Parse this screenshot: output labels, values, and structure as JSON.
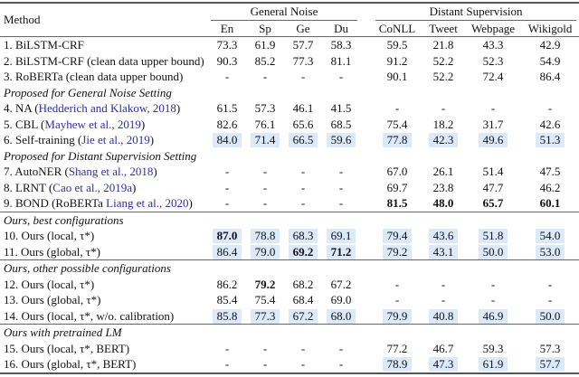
{
  "header": {
    "method": "Method",
    "groups": [
      "General Noise",
      "Distant Supervision"
    ],
    "columns": [
      "En",
      "Sp",
      "Ge",
      "Du",
      "CoNLL",
      "Tweet",
      "Webpage",
      "Wikigold"
    ]
  },
  "highlight_color": "#dce9f9",
  "citation_color": "#2b2fa8",
  "rows": [
    {
      "type": "row",
      "method": "1. BiLSTM-CRF",
      "values": [
        "73.3",
        "61.9",
        "57.7",
        "58.3",
        "59.5",
        "21.8",
        "43.3",
        "42.9"
      ]
    },
    {
      "type": "row",
      "method": "2. BiLSTM-CRF (clean data upper bound)",
      "values": [
        "90.3",
        "85.2",
        "77.3",
        "81.1",
        "91.2",
        "52.2",
        "52.3",
        "54.9"
      ]
    },
    {
      "type": "row",
      "method": "3. RoBERTa (clean data upper bound)",
      "values": [
        "-",
        "-",
        "-",
        "-",
        "90.1",
        "52.2",
        "72.4",
        "86.4"
      ]
    },
    {
      "type": "section",
      "label": "Proposed for General Noise Setting"
    },
    {
      "type": "row",
      "method": "4. NA (",
      "cite": "Hedderich and Klakow, 2018",
      "suffix": ")",
      "values": [
        "61.5",
        "57.3",
        "46.1",
        "41.5",
        "-",
        "-",
        "-",
        "-"
      ]
    },
    {
      "type": "row",
      "method": "5. CBL (",
      "cite": "Mayhew et al., 2019",
      "suffix": ")",
      "values": [
        "82.6",
        "76.1",
        "65.6",
        "68.5",
        "75.4",
        "18.2",
        "31.7",
        "42.6"
      ]
    },
    {
      "type": "row",
      "method": "6. Self-training (",
      "cite": "Jie et al., 2019",
      "suffix": ")",
      "values": [
        "84.0",
        "71.4",
        "66.5",
        "59.6",
        "77.8",
        "42.3",
        "49.6",
        "51.3"
      ],
      "highlight": [
        0,
        1,
        2,
        3,
        4,
        5,
        6,
        7
      ]
    },
    {
      "type": "section",
      "label": "Proposed for Distant Supervision Setting"
    },
    {
      "type": "row",
      "method": "7. AutoNER (",
      "cite": "Shang et al., 2018",
      "suffix": ")",
      "values": [
        "-",
        "-",
        "-",
        "-",
        "67.0",
        "26.1",
        "51.4",
        "47.5"
      ]
    },
    {
      "type": "row",
      "method": "8. LRNT (",
      "cite": "Cao et al., 2019a",
      "suffix": ")",
      "values": [
        "-",
        "-",
        "-",
        "-",
        "69.7",
        "23.8",
        "47.7",
        "46.2"
      ]
    },
    {
      "type": "row",
      "method": "9. BOND (RoBERTa ",
      "cite": "Liang et al., 2020",
      "suffix": ")",
      "values": [
        "-",
        "-",
        "-",
        "-",
        "81.5",
        "48.0",
        "65.7",
        "60.1"
      ],
      "bold": [
        4,
        5,
        6,
        7
      ],
      "rule_after": true
    },
    {
      "type": "section",
      "label": "Ours, best configurations"
    },
    {
      "type": "row",
      "method": "10. Ours (local, τ*)",
      "values": [
        "87.0",
        "78.8",
        "68.3",
        "69.1",
        "79.4",
        "43.6",
        "51.8",
        "54.0"
      ],
      "bold": [
        0
      ],
      "highlight": [
        0,
        1,
        2,
        3,
        4,
        5,
        6,
        7
      ]
    },
    {
      "type": "row",
      "method": "11. Ours (global, τ*)",
      "values": [
        "86.4",
        "79.0",
        "69.2",
        "71.2",
        "79.2",
        "43.1",
        "50.0",
        "53.0"
      ],
      "bold": [
        2,
        3
      ],
      "highlight": [
        0,
        1,
        2,
        3,
        4,
        5,
        6,
        7
      ],
      "rule_after": true
    },
    {
      "type": "section",
      "label": "Ours, other possible configurations"
    },
    {
      "type": "row",
      "method": "12. Ours (local, τ*)",
      "values": [
        "86.2",
        "79.2",
        "68.2",
        "67.2",
        "-",
        "-",
        "-",
        "-"
      ],
      "bold": [
        1
      ]
    },
    {
      "type": "row",
      "method": "13. Ours (global, τ*)",
      "values": [
        "85.4",
        "75.4",
        "68.4",
        "69.0",
        "-",
        "-",
        "-",
        "-"
      ]
    },
    {
      "type": "row",
      "method": "14. Ours (local, τ*, w/o. calibration)",
      "values": [
        "85.8",
        "77.3",
        "67.2",
        "68.0",
        "79.9",
        "40.8",
        "46.9",
        "50.0"
      ],
      "highlight": [
        0,
        1,
        2,
        3,
        4,
        5,
        6,
        7
      ],
      "rule_after": true
    },
    {
      "type": "section",
      "label": "Ours with pretrained LM"
    },
    {
      "type": "row",
      "method": "15. Ours (local, τ*, BERT)",
      "values": [
        "-",
        "-",
        "-",
        "-",
        "77.2",
        "46.7",
        "59.3",
        "57.3"
      ]
    },
    {
      "type": "row",
      "method": "16. Ours (global, τ*, BERT)",
      "values": [
        "-",
        "-",
        "-",
        "-",
        "78.9",
        "47.3",
        "61.9",
        "57.7"
      ],
      "highlight": [
        4,
        5,
        6,
        7
      ],
      "last": true
    }
  ]
}
